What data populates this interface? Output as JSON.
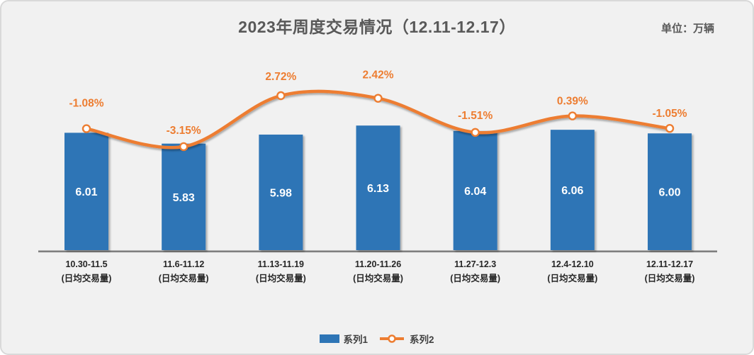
{
  "title": "2023年周度交易情况（12.11-12.17）",
  "unit_label": "单位：万辆",
  "legend": {
    "series1_label": "系列1",
    "series2_label": "系列2"
  },
  "chart_data": {
    "type": "bar+line",
    "title": "2023年周度交易情况（12.11-12.17）",
    "unit": "万辆",
    "categories": [
      "10.30-11.5",
      "11.6-11.12",
      "11.13-11.19",
      "11.20-11.26",
      "11.27-12.3",
      "12.4-12.10",
      "12.11-12.17"
    ],
    "category_sublabel": "(日均交易量)",
    "series": [
      {
        "name": "系列1",
        "type": "bar",
        "values": [
          6.01,
          5.83,
          5.98,
          6.13,
          6.04,
          6.06,
          6.0
        ],
        "labels": [
          "6.01",
          "5.83",
          "5.98",
          "6.13",
          "6.04",
          "6.06",
          "6.00"
        ]
      },
      {
        "name": "系列2",
        "type": "line",
        "values_pct": [
          -1.08,
          -3.15,
          2.72,
          2.42,
          -1.51,
          0.39,
          -1.05
        ],
        "labels": [
          "-1.08%",
          "-3.15%",
          "2.72%",
          "2.42%",
          "-1.51%",
          "0.39%",
          "-1.05%"
        ]
      }
    ],
    "ylim_bar_implied": [
      4.05,
      6.2
    ],
    "ylim_pct_implied": [
      -4,
      3.5
    ],
    "grid": "off",
    "legend_position": "bottom-center"
  },
  "colors": {
    "background": "#F1F1F1",
    "border": "#D9D9D9",
    "bar": "#2E75B6",
    "line": "#ED7D31",
    "marker_fill": "#FFFFFF",
    "title_text": "#595959",
    "axis_line": "#7F7F7F",
    "bar_label_text": "#FFFFFF",
    "pct_label_text": "#ED7D31",
    "category_text": "#262626",
    "legend_text": "#404040"
  }
}
